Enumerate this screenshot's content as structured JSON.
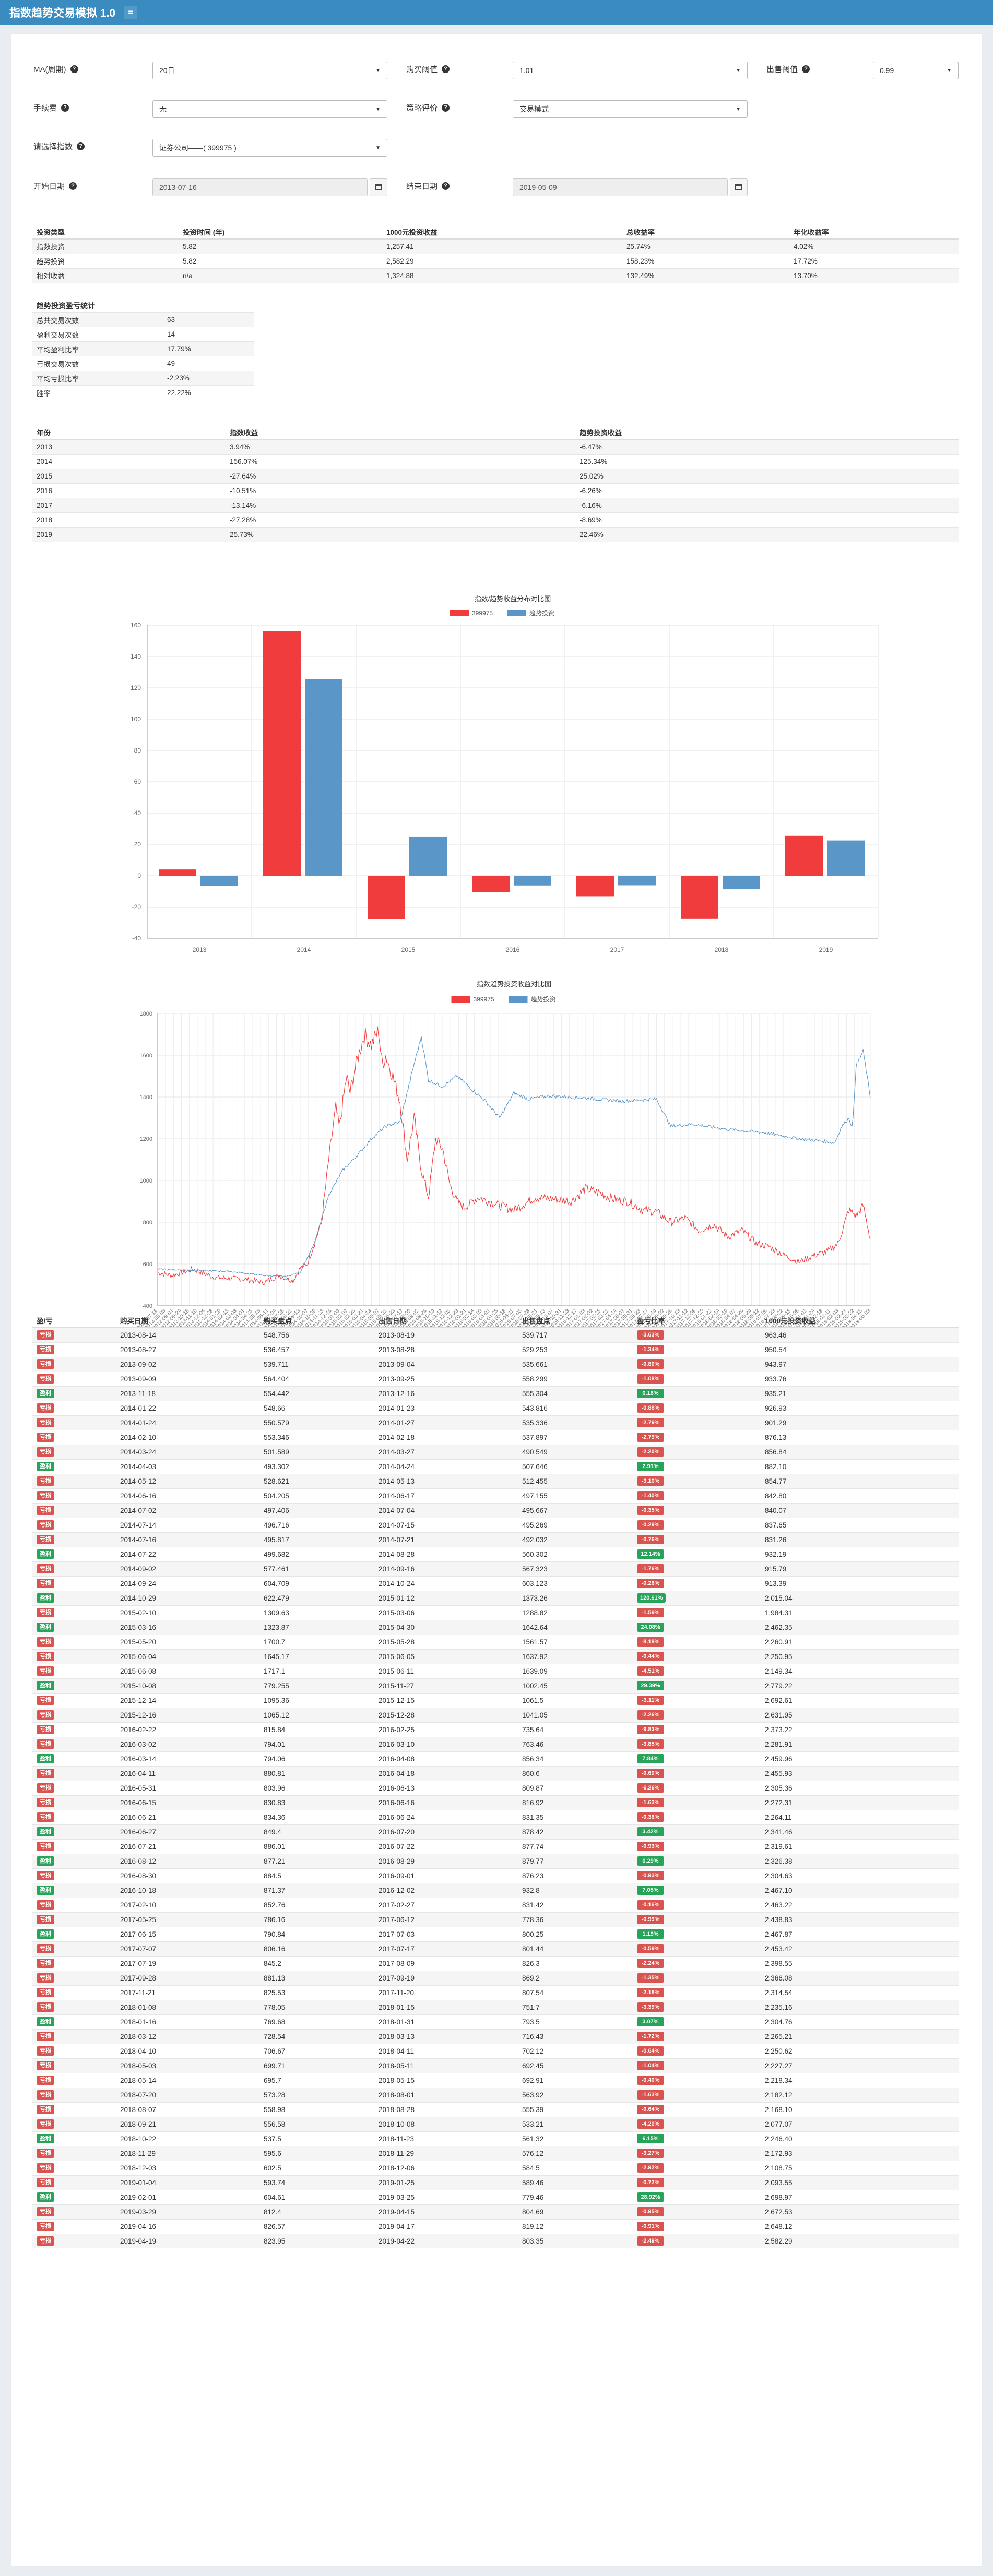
{
  "app_title": "指数趋势交易模拟 1.0",
  "form": {
    "ma_label": "MA(周期)",
    "ma_value": "20日",
    "buy_threshold_label": "购买阈值",
    "buy_threshold_value": "1.01",
    "sell_threshold_label": "出售阈值",
    "sell_threshold_value": "0.99",
    "fee_label": "手续费",
    "fee_value": "无",
    "mode_label": "策略评价",
    "mode_value": "交易模式",
    "index_label": "请选择指数",
    "index_value": "证券公司——( 399975 )",
    "start_label": "开始日期",
    "start_value": "2013-07-16",
    "end_label": "结束日期",
    "end_value": "2019-05-09"
  },
  "summary": {
    "headers": [
      "投资类型",
      "投资时间 (年)",
      "1000元投资收益",
      "总收益率",
      "年化收益率"
    ],
    "rows": [
      [
        "指数投资",
        "5.82",
        "1,257.41",
        "25.74%",
        "4.02%"
      ],
      [
        "趋势投资",
        "5.82",
        "2,582.29",
        "158.23%",
        "17.72%"
      ],
      [
        "相对收益",
        "n/a",
        "1,324.88",
        "132.49%",
        "13.70%"
      ]
    ]
  },
  "stats": {
    "title": "趋势投资盈亏统计",
    "rows": [
      [
        "总共交易次数",
        "63"
      ],
      [
        "盈利交易次数",
        "14"
      ],
      [
        "平均盈利比率",
        "17.79%"
      ],
      [
        "亏损交易次数",
        "49"
      ],
      [
        "平均亏损比率",
        "-2.23%"
      ],
      [
        "胜率",
        "22.22%"
      ]
    ]
  },
  "yearly": {
    "headers": [
      "年份",
      "指数收益",
      "趋势投资收益"
    ],
    "rows": [
      [
        "2013",
        "3.94%",
        "-6.47%"
      ],
      [
        "2014",
        "156.07%",
        "125.34%"
      ],
      [
        "2015",
        "-27.64%",
        "25.02%"
      ],
      [
        "2016",
        "-10.51%",
        "-6.26%"
      ],
      [
        "2017",
        "-13.14%",
        "-6.16%"
      ],
      [
        "2018",
        "-27.28%",
        "-8.69%"
      ],
      [
        "2019",
        "25.73%",
        "22.46%"
      ]
    ]
  },
  "colors": {
    "index": "#f03c3c",
    "trend": "#5b96c8",
    "nav": "#3a8bc0",
    "win": "#27a35a",
    "loss": "#d9534f"
  },
  "chart_data": [
    {
      "type": "bar",
      "title": "指数/趋势收益分布对比图",
      "categories": [
        "2013",
        "2014",
        "2015",
        "2016",
        "2017",
        "2018",
        "2019"
      ],
      "series": [
        {
          "name": "399975",
          "values": [
            3.94,
            156.07,
            -27.64,
            -10.51,
            -13.14,
            -27.28,
            25.73
          ]
        },
        {
          "name": "趋势投资",
          "values": [
            -6.47,
            125.34,
            25.02,
            -6.26,
            -6.16,
            -8.69,
            22.46
          ]
        }
      ],
      "ylim": [
        -40,
        160
      ],
      "yticks": [
        -40,
        -20,
        0,
        20,
        40,
        60,
        80,
        100,
        120,
        140,
        160
      ],
      "legend": "top-center",
      "grid": true
    },
    {
      "type": "line",
      "title": "指数趋势投资收益对比图",
      "ylim": [
        400,
        1800
      ],
      "yticks": [
        400,
        600,
        800,
        1000,
        1200,
        1400,
        1600,
        1800
      ],
      "legend": "top-center",
      "grid": true,
      "x_start": "2013-07-16",
      "x_end": "2019-05-09",
      "series": [
        {
          "name": "399975",
          "points": [
            [
              0,
              560
            ],
            [
              0.02,
              545
            ],
            [
              0.05,
              575
            ],
            [
              0.08,
              535
            ],
            [
              0.12,
              528
            ],
            [
              0.15,
              512
            ],
            [
              0.17,
              545
            ],
            [
              0.19,
              520
            ],
            [
              0.2,
              580
            ],
            [
              0.21,
              600
            ],
            [
              0.23,
              800
            ],
            [
              0.24,
              1100
            ],
            [
              0.25,
              1350
            ],
            [
              0.255,
              1250
            ],
            [
              0.265,
              1500
            ],
            [
              0.27,
              1420
            ],
            [
              0.28,
              1580
            ],
            [
              0.29,
              1700
            ],
            [
              0.3,
              1650
            ],
            [
              0.31,
              1720
            ],
            [
              0.315,
              1550
            ],
            [
              0.32,
              1600
            ],
            [
              0.33,
              1500
            ],
            [
              0.34,
              1380
            ],
            [
              0.35,
              1100
            ],
            [
              0.36,
              1300
            ],
            [
              0.37,
              1050
            ],
            [
              0.38,
              920
            ],
            [
              0.39,
              1200
            ],
            [
              0.4,
              1150
            ],
            [
              0.41,
              980
            ],
            [
              0.42,
              900
            ],
            [
              0.43,
              870
            ],
            [
              0.45,
              920
            ],
            [
              0.48,
              880
            ],
            [
              0.5,
              860
            ],
            [
              0.53,
              920
            ],
            [
              0.56,
              910
            ],
            [
              0.58,
              900
            ],
            [
              0.6,
              960
            ],
            [
              0.62,
              940
            ],
            [
              0.64,
              910
            ],
            [
              0.66,
              900
            ],
            [
              0.68,
              860
            ],
            [
              0.7,
              850
            ],
            [
              0.72,
              800
            ],
            [
              0.74,
              820
            ],
            [
              0.76,
              760
            ],
            [
              0.78,
              790
            ],
            [
              0.8,
              730
            ],
            [
              0.82,
              760
            ],
            [
              0.84,
              700
            ],
            [
              0.86,
              680
            ],
            [
              0.88,
              640
            ],
            [
              0.9,
              610
            ],
            [
              0.92,
              640
            ],
            [
              0.94,
              660
            ],
            [
              0.955,
              700
            ],
            [
              0.97,
              860
            ],
            [
              0.98,
              830
            ],
            [
              0.99,
              880
            ],
            [
              1,
              720
            ]
          ]
        },
        {
          "name": "趋势投资",
          "points": [
            [
              0,
              575
            ],
            [
              0.05,
              570
            ],
            [
              0.1,
              565
            ],
            [
              0.15,
              545
            ],
            [
              0.18,
              540
            ],
            [
              0.2,
              560
            ],
            [
              0.22,
              700
            ],
            [
              0.24,
              930
            ],
            [
              0.26,
              1050
            ],
            [
              0.28,
              1120
            ],
            [
              0.3,
              1200
            ],
            [
              0.32,
              1260
            ],
            [
              0.34,
              1280
            ],
            [
              0.36,
              1560
            ],
            [
              0.37,
              1690
            ],
            [
              0.38,
              1480
            ],
            [
              0.4,
              1450
            ],
            [
              0.42,
              1500
            ],
            [
              0.44,
              1440
            ],
            [
              0.46,
              1380
            ],
            [
              0.48,
              1300
            ],
            [
              0.5,
              1420
            ],
            [
              0.52,
              1390
            ],
            [
              0.55,
              1405
            ],
            [
              0.6,
              1395
            ],
            [
              0.65,
              1380
            ],
            [
              0.7,
              1390
            ],
            [
              0.72,
              1260
            ],
            [
              0.75,
              1270
            ],
            [
              0.8,
              1245
            ],
            [
              0.85,
              1230
            ],
            [
              0.9,
              1200
            ],
            [
              0.93,
              1190
            ],
            [
              0.95,
              1180
            ],
            [
              0.96,
              1260
            ],
            [
              0.97,
              1300
            ],
            [
              0.975,
              1250
            ],
            [
              0.98,
              1550
            ],
            [
              0.99,
              1620
            ],
            [
              1,
              1400
            ]
          ]
        }
      ]
    }
  ],
  "trades": {
    "headers": [
      "盈/亏",
      "购买日期",
      "购买盘点",
      "出售日期",
      "出售盘点",
      "盈亏比率",
      "1000元投资收益"
    ],
    "rows": [
      [
        "亏损",
        "2013-08-14",
        "548.756",
        "2013-08-19",
        "539.717",
        "-3.63%",
        "963.46"
      ],
      [
        "亏损",
        "2013-08-27",
        "536.457",
        "2013-08-28",
        "529.253",
        "-1.34%",
        "950.54"
      ],
      [
        "亏损",
        "2013-09-02",
        "539.711",
        "2013-09-04",
        "535.661",
        "-0.80%",
        "943.97"
      ],
      [
        "亏损",
        "2013-09-09",
        "564.404",
        "2013-09-25",
        "558.299",
        "-1.08%",
        "933.76"
      ],
      [
        "盈利",
        "2013-11-18",
        "554.442",
        "2013-12-16",
        "555.304",
        "0.16%",
        "935.21"
      ],
      [
        "亏损",
        "2014-01-22",
        "548.66",
        "2014-01-23",
        "543.816",
        "-0.88%",
        "926.93"
      ],
      [
        "亏损",
        "2014-01-24",
        "550.579",
        "2014-01-27",
        "535.336",
        "-2.79%",
        "901.29"
      ],
      [
        "亏损",
        "2014-02-10",
        "553.346",
        "2014-02-18",
        "537.897",
        "-2.79%",
        "876.13"
      ],
      [
        "亏损",
        "2014-03-24",
        "501.589",
        "2014-03-27",
        "490.549",
        "-2.20%",
        "856.84"
      ],
      [
        "盈利",
        "2014-04-03",
        "493.302",
        "2014-04-24",
        "507.646",
        "2.91%",
        "882.10"
      ],
      [
        "亏损",
        "2014-05-12",
        "528.621",
        "2014-05-13",
        "512.455",
        "-3.10%",
        "854.77"
      ],
      [
        "亏损",
        "2014-06-16",
        "504.205",
        "2014-06-17",
        "497.155",
        "-1.40%",
        "842.80"
      ],
      [
        "亏损",
        "2014-07-02",
        "497.406",
        "2014-07-04",
        "495.667",
        "-0.35%",
        "840.07"
      ],
      [
        "亏损",
        "2014-07-14",
        "496.716",
        "2014-07-15",
        "495.269",
        "-0.29%",
        "837.65"
      ],
      [
        "亏损",
        "2014-07-16",
        "495.817",
        "2014-07-21",
        "492.032",
        "-0.76%",
        "831.26"
      ],
      [
        "盈利",
        "2014-07-22",
        "499.682",
        "2014-08-28",
        "560.302",
        "12.14%",
        "932.19"
      ],
      [
        "亏损",
        "2014-09-02",
        "577.461",
        "2014-09-16",
        "567.323",
        "-1.76%",
        "915.79"
      ],
      [
        "亏损",
        "2014-09-24",
        "604.709",
        "2014-10-24",
        "603.123",
        "-0.26%",
        "913.39"
      ],
      [
        "盈利",
        "2014-10-29",
        "622.479",
        "2015-01-12",
        "1373.26",
        "120.61%",
        "2,015.04"
      ],
      [
        "亏损",
        "2015-02-10",
        "1309.63",
        "2015-03-06",
        "1288.82",
        "-1.59%",
        "1,984.31"
      ],
      [
        "盈利",
        "2015-03-16",
        "1323.87",
        "2015-04-30",
        "1642.64",
        "24.08%",
        "2,462.35"
      ],
      [
        "亏损",
        "2015-05-20",
        "1700.7",
        "2015-05-28",
        "1561.57",
        "-8.18%",
        "2,260.91"
      ],
      [
        "亏损",
        "2015-06-04",
        "1645.17",
        "2015-06-05",
        "1637.92",
        "-0.44%",
        "2,250.95"
      ],
      [
        "亏损",
        "2015-06-08",
        "1717.1",
        "2015-06-11",
        "1639.09",
        "-4.51%",
        "2,149.34"
      ],
      [
        "盈利",
        "2015-10-08",
        "779.255",
        "2015-11-27",
        "1002.45",
        "29.39%",
        "2,779.22"
      ],
      [
        "亏损",
        "2015-12-14",
        "1095.36",
        "2015-12-15",
        "1061.5",
        "-3.11%",
        "2,692.61"
      ],
      [
        "亏损",
        "2015-12-16",
        "1065.12",
        "2015-12-28",
        "1041.05",
        "-2.26%",
        "2,631.95"
      ],
      [
        "亏损",
        "2016-02-22",
        "815.84",
        "2016-02-25",
        "735.64",
        "-9.83%",
        "2,373.22"
      ],
      [
        "亏损",
        "2016-03-02",
        "794.01",
        "2016-03-10",
        "763.46",
        "-3.85%",
        "2,281.91"
      ],
      [
        "盈利",
        "2016-03-14",
        "794.06",
        "2016-04-08",
        "856.34",
        "7.84%",
        "2,459.96"
      ],
      [
        "亏损",
        "2016-04-11",
        "880.81",
        "2016-04-18",
        "860.6",
        "-0.60%",
        "2,455.93"
      ],
      [
        "亏损",
        "2016-05-31",
        "803.96",
        "2016-06-13",
        "809.87",
        "-6.26%",
        "2,305.36"
      ],
      [
        "亏损",
        "2016-06-15",
        "830.83",
        "2016-06-16",
        "816.92",
        "-1.63%",
        "2,272.31"
      ],
      [
        "亏损",
        "2016-06-21",
        "834.36",
        "2016-06-24",
        "831.35",
        "-0.36%",
        "2,264.11"
      ],
      [
        "盈利",
        "2016-06-27",
        "849.4",
        "2016-07-20",
        "878.42",
        "3.42%",
        "2,341.46"
      ],
      [
        "亏损",
        "2016-07-21",
        "886.01",
        "2016-07-22",
        "877.74",
        "-0.93%",
        "2,319.61"
      ],
      [
        "盈利",
        "2016-08-12",
        "877.21",
        "2016-08-29",
        "879.77",
        "0.29%",
        "2,326.38"
      ],
      [
        "亏损",
        "2016-08-30",
        "884.5",
        "2016-09-01",
        "876.23",
        "-0.93%",
        "2,304.63"
      ],
      [
        "盈利",
        "2016-10-18",
        "871.37",
        "2016-12-02",
        "932.8",
        "7.05%",
        "2,467.10"
      ],
      [
        "亏损",
        "2017-02-10",
        "852.76",
        "2017-02-27",
        "831.42",
        "-0.16%",
        "2,463.22"
      ],
      [
        "亏损",
        "2017-05-25",
        "786.16",
        "2017-06-12",
        "778.36",
        "-0.99%",
        "2,438.83"
      ],
      [
        "盈利",
        "2017-06-15",
        "790.84",
        "2017-07-03",
        "800.25",
        "1.19%",
        "2,467.87"
      ],
      [
        "亏损",
        "2017-07-07",
        "806.16",
        "2017-07-17",
        "801.44",
        "-0.59%",
        "2,453.42"
      ],
      [
        "亏损",
        "2017-07-19",
        "845.2",
        "2017-08-09",
        "826.3",
        "-2.24%",
        "2,398.55"
      ],
      [
        "亏损",
        "2017-09-28",
        "881.13",
        "2017-09-19",
        "869.2",
        "-1.35%",
        "2,366.08"
      ],
      [
        "亏损",
        "2017-11-21",
        "825.53",
        "2017-11-20",
        "807.54",
        "-2.18%",
        "2,314.54"
      ],
      [
        "亏损",
        "2018-01-08",
        "778.05",
        "2018-01-15",
        "751.7",
        "-3.39%",
        "2,235.16"
      ],
      [
        "盈利",
        "2018-01-16",
        "769.68",
        "2018-01-31",
        "793.5",
        "3.07%",
        "2,304.76"
      ],
      [
        "亏损",
        "2018-03-12",
        "728.54",
        "2018-03-13",
        "716.43",
        "-1.72%",
        "2,265.21"
      ],
      [
        "亏损",
        "2018-04-10",
        "706.67",
        "2018-04-11",
        "702.12",
        "-0.64%",
        "2,250.62"
      ],
      [
        "亏损",
        "2018-05-03",
        "699.71",
        "2018-05-11",
        "692.45",
        "-1.04%",
        "2,227.27"
      ],
      [
        "亏损",
        "2018-05-14",
        "695.7",
        "2018-05-15",
        "692.91",
        "-0.40%",
        "2,218.34"
      ],
      [
        "亏损",
        "2018-07-20",
        "573.28",
        "2018-08-01",
        "563.92",
        "-1.63%",
        "2,182.12"
      ],
      [
        "亏损",
        "2018-08-07",
        "558.98",
        "2018-08-28",
        "555.39",
        "-0.64%",
        "2,168.10"
      ],
      [
        "亏损",
        "2018-09-21",
        "556.58",
        "2018-10-08",
        "533.21",
        "-4.20%",
        "2,077.07"
      ],
      [
        "盈利",
        "2018-10-22",
        "537.5",
        "2018-11-23",
        "561.32",
        "6.15%",
        "2,246.40"
      ],
      [
        "亏损",
        "2018-11-29",
        "595.6",
        "2018-11-29",
        "576.12",
        "-3.27%",
        "2,172.93"
      ],
      [
        "亏损",
        "2018-12-03",
        "602.5",
        "2018-12-06",
        "584.5",
        "-2.92%",
        "2,108.75"
      ],
      [
        "亏损",
        "2019-01-04",
        "593.74",
        "2019-01-25",
        "589.46",
        "-0.72%",
        "2,093.55"
      ],
      [
        "盈利",
        "2019-02-01",
        "604.61",
        "2019-03-25",
        "779.46",
        "28.92%",
        "2,698.97"
      ],
      [
        "亏损",
        "2019-03-29",
        "812.4",
        "2019-04-15",
        "804.69",
        "-0.95%",
        "2,672.53"
      ],
      [
        "亏损",
        "2019-04-16",
        "826.57",
        "2019-04-17",
        "819.12",
        "-0.91%",
        "2,648.12"
      ],
      [
        "亏损",
        "2019-04-19",
        "823.95",
        "2019-04-22",
        "803.35",
        "-2.49%",
        "2,582.29"
      ]
    ]
  }
}
